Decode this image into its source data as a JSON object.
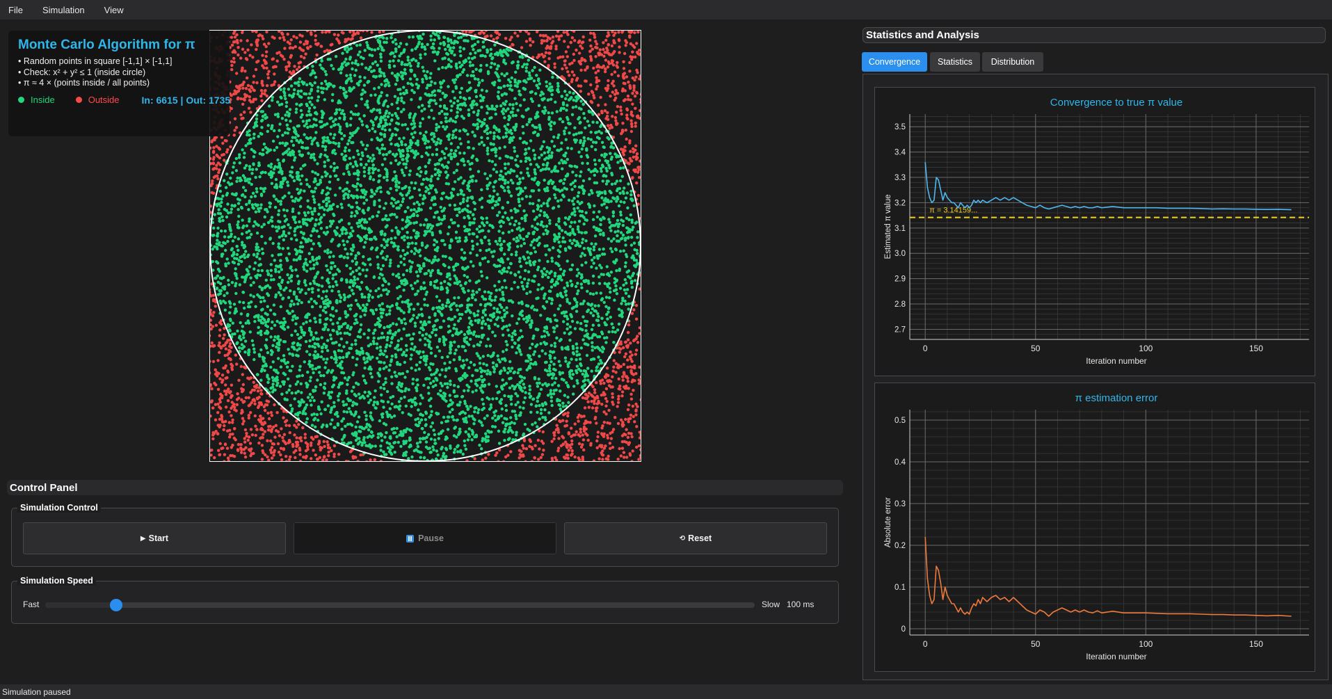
{
  "menu": [
    "File",
    "Simulation",
    "View"
  ],
  "info": {
    "title": "Monte Carlo Algorithm for π",
    "lines": [
      "• Random points in square [-1,1] × [-1,1]",
      "• Check: x² + y² ≤ 1 (inside circle)",
      "• π ≈ 4 × (points inside / all points)"
    ],
    "legend_inside": "Inside",
    "legend_outside": "Outside",
    "counts": "In: 6615 | Out: 1735"
  },
  "simulation": {
    "points_inside": 6615,
    "points_outside": 1735,
    "colors": {
      "inside": "#21d77e",
      "outside": "#f04848",
      "circle": "#ffffff",
      "background": "#1a1a1a"
    }
  },
  "control_panel": {
    "title": "Control Panel",
    "simulation_control_title": "Simulation Control",
    "start_label": "Start",
    "pause_label": "Pause",
    "reset_label": "Reset",
    "pause_disabled": true,
    "speed_title": "Simulation Speed",
    "speed_min_label": "Fast",
    "speed_max_label": "Slow",
    "speed_value": "100 ms",
    "speed_fraction": 0.1
  },
  "statistics": {
    "title": "Statistics and Analysis",
    "tabs": [
      {
        "label": "Convergence",
        "active": true
      },
      {
        "label": "Statistics",
        "active": false
      },
      {
        "label": "Distribution",
        "active": false
      }
    ]
  },
  "chart_data": [
    {
      "type": "line",
      "title": "Convergence to true π value",
      "xlabel": "Iteration number",
      "ylabel": "Estimated π value",
      "xlim": [
        -7,
        174
      ],
      "ylim": [
        2.66,
        3.55
      ],
      "xticks": [
        0,
        50,
        100,
        150
      ],
      "yticks": [
        2.7,
        2.8,
        2.9,
        3.0,
        3.1,
        3.2,
        3.3,
        3.4,
        3.5
      ],
      "ytick_labels": [
        "2.7",
        "2.8",
        "2.9",
        "3.0",
        "3.1",
        "3.2",
        "3.3",
        "3.4",
        "3.5"
      ],
      "grid": true,
      "reference_line": {
        "y": 3.14159,
        "label": "π = 3.14159...",
        "color": "#f2d21b"
      },
      "series": [
        {
          "color": "#4fb8f0",
          "x": [
            0,
            1,
            2,
            3,
            4,
            5,
            6,
            7,
            8,
            9,
            10,
            11,
            12,
            13,
            14,
            15,
            16,
            17,
            18,
            19,
            20,
            21,
            22,
            23,
            24,
            25,
            26,
            28,
            30,
            32,
            34,
            36,
            38,
            40,
            42,
            44,
            46,
            48,
            50,
            52,
            54,
            56,
            58,
            60,
            62,
            64,
            66,
            68,
            70,
            72,
            74,
            76,
            78,
            80,
            85,
            90,
            95,
            100,
            105,
            110,
            115,
            120,
            125,
            130,
            135,
            140,
            145,
            150,
            155,
            160,
            166
          ],
          "values": [
            3.36,
            3.26,
            3.22,
            3.2,
            3.21,
            3.3,
            3.29,
            3.25,
            3.21,
            3.24,
            3.22,
            3.21,
            3.2,
            3.2,
            3.19,
            3.18,
            3.2,
            3.19,
            3.18,
            3.19,
            3.18,
            3.19,
            3.21,
            3.2,
            3.21,
            3.2,
            3.21,
            3.2,
            3.21,
            3.22,
            3.21,
            3.22,
            3.21,
            3.22,
            3.21,
            3.2,
            3.19,
            3.185,
            3.18,
            3.19,
            3.18,
            3.175,
            3.18,
            3.185,
            3.19,
            3.185,
            3.18,
            3.185,
            3.18,
            3.185,
            3.18,
            3.18,
            3.185,
            3.18,
            3.185,
            3.18,
            3.18,
            3.18,
            3.18,
            3.178,
            3.178,
            3.178,
            3.177,
            3.175,
            3.176,
            3.175,
            3.175,
            3.174,
            3.173,
            3.174,
            3.172
          ]
        }
      ]
    },
    {
      "type": "line",
      "title": "π estimation error",
      "xlabel": "Iteration number",
      "ylabel": "Absolute error",
      "xlim": [
        -7,
        174
      ],
      "ylim": [
        -0.015,
        0.525
      ],
      "xticks": [
        0,
        50,
        100,
        150
      ],
      "yticks": [
        0,
        0.1,
        0.2,
        0.3,
        0.4,
        0.5
      ],
      "ytick_labels": [
        "0",
        "0.1",
        "0.2",
        "0.3",
        "0.4",
        "0.5"
      ],
      "grid": true,
      "series": [
        {
          "color": "#f07a3a",
          "x": [
            0,
            1,
            2,
            3,
            4,
            5,
            6,
            7,
            8,
            9,
            10,
            11,
            12,
            13,
            14,
            15,
            16,
            17,
            18,
            19,
            20,
            21,
            22,
            23,
            24,
            25,
            26,
            28,
            30,
            32,
            34,
            36,
            38,
            40,
            42,
            44,
            46,
            48,
            50,
            52,
            54,
            56,
            58,
            60,
            62,
            64,
            66,
            68,
            70,
            72,
            74,
            76,
            78,
            80,
            85,
            90,
            95,
            100,
            105,
            110,
            115,
            120,
            125,
            130,
            135,
            140,
            145,
            150,
            155,
            160,
            166
          ],
          "values": [
            0.22,
            0.12,
            0.08,
            0.06,
            0.07,
            0.15,
            0.14,
            0.11,
            0.07,
            0.1,
            0.08,
            0.07,
            0.06,
            0.06,
            0.05,
            0.04,
            0.05,
            0.04,
            0.035,
            0.04,
            0.035,
            0.05,
            0.06,
            0.055,
            0.07,
            0.06,
            0.075,
            0.065,
            0.075,
            0.08,
            0.07,
            0.075,
            0.065,
            0.075,
            0.065,
            0.055,
            0.045,
            0.04,
            0.035,
            0.045,
            0.04,
            0.03,
            0.04,
            0.045,
            0.05,
            0.045,
            0.04,
            0.045,
            0.04,
            0.045,
            0.04,
            0.038,
            0.043,
            0.038,
            0.042,
            0.038,
            0.038,
            0.038,
            0.037,
            0.036,
            0.036,
            0.036,
            0.035,
            0.034,
            0.034,
            0.033,
            0.033,
            0.032,
            0.031,
            0.032,
            0.03
          ]
        }
      ]
    }
  ],
  "status": "Simulation paused"
}
